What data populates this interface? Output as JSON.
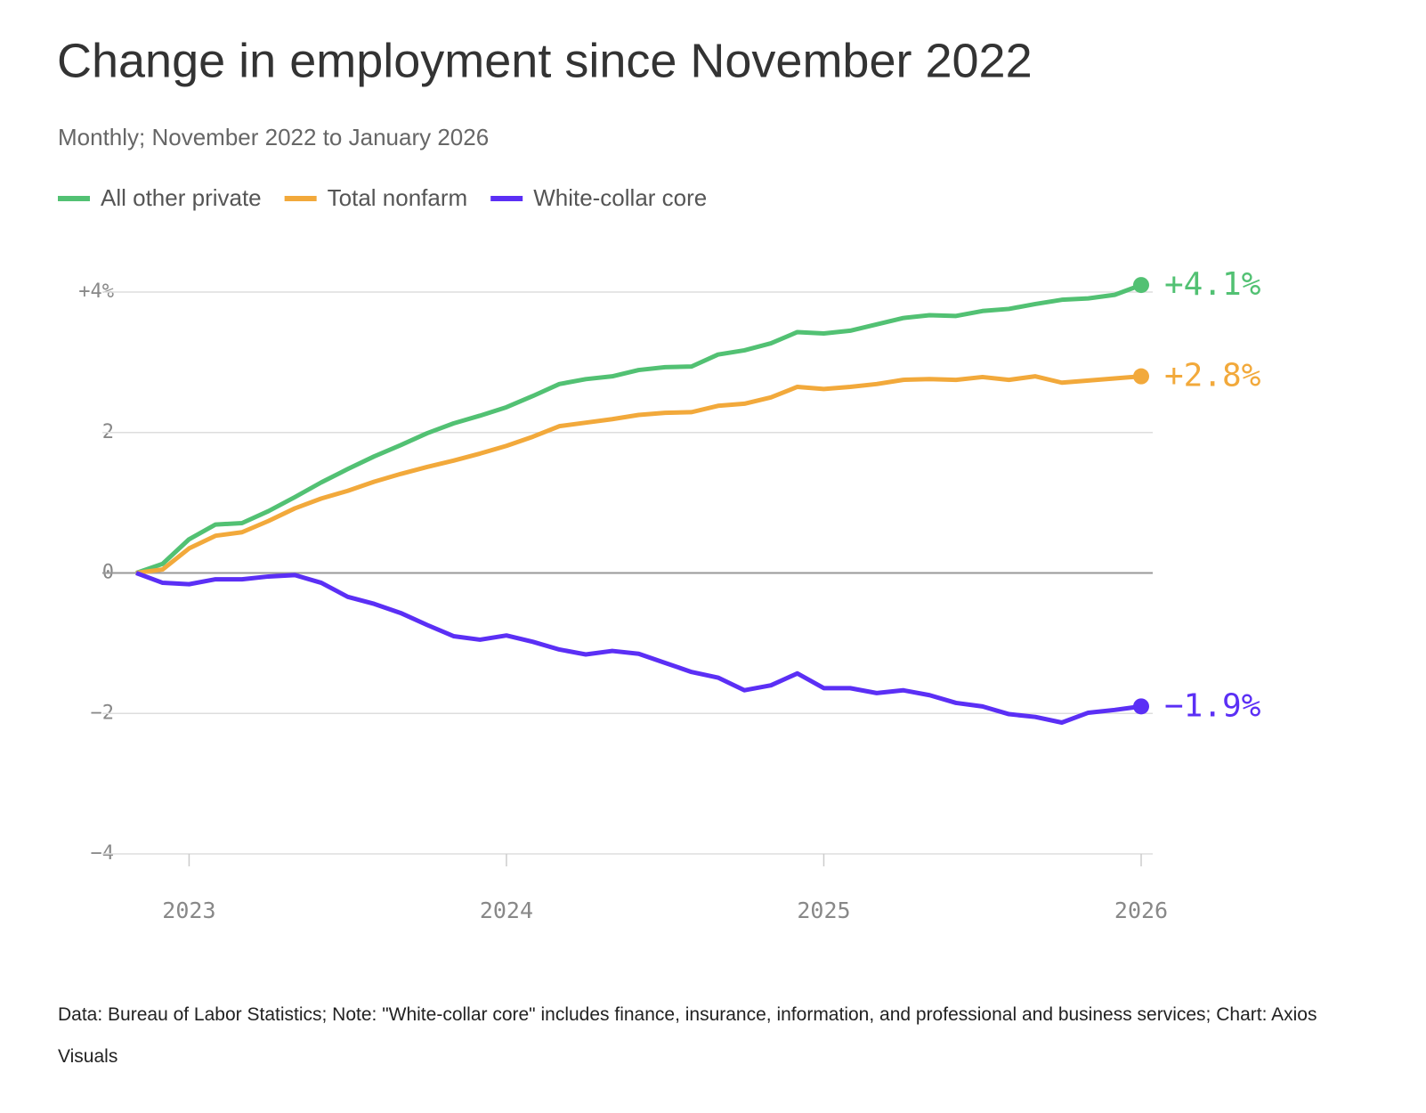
{
  "chart_data": {
    "type": "line",
    "title": "Change in employment since November 2022",
    "subtitle": "Monthly; November 2022 to January 2026",
    "note": "Data: Bureau of Labor Statistics; Note: \"White-collar core\" includes finance, insurance, information, and professional and business services; Chart: Axios Visuals",
    "x": [
      "2022-11",
      "2022-12",
      "2023-01",
      "2023-02",
      "2023-03",
      "2023-04",
      "2023-05",
      "2023-06",
      "2023-07",
      "2023-08",
      "2023-09",
      "2023-10",
      "2023-11",
      "2023-12",
      "2024-01",
      "2024-02",
      "2024-03",
      "2024-04",
      "2024-05",
      "2024-06",
      "2024-07",
      "2024-08",
      "2024-09",
      "2024-10",
      "2024-11",
      "2024-12",
      "2025-01",
      "2025-02",
      "2025-03",
      "2025-04",
      "2025-05",
      "2025-06",
      "2025-07",
      "2025-08",
      "2025-09",
      "2025-10",
      "2025-11",
      "2025-12",
      "2026-01"
    ],
    "xlim": [
      "2022-11",
      "2026-01"
    ],
    "xticks": [
      {
        "value": "2023-01",
        "label": "2023"
      },
      {
        "value": "2024-01",
        "label": "2024"
      },
      {
        "value": "2025-01",
        "label": "2025"
      },
      {
        "value": "2026-01",
        "label": "2026"
      }
    ],
    "ylim": [
      -4,
      4
    ],
    "yticks": [
      {
        "value": 4,
        "label": "+4%"
      },
      2,
      0,
      {
        "value": -2,
        "label": "−2"
      },
      {
        "value": -4,
        "label": "−4"
      }
    ],
    "grid": true,
    "series": [
      {
        "name": "All other private",
        "color": "#52c173",
        "values": [
          0,
          0.13,
          0.48,
          0.69,
          0.71,
          0.88,
          1.08,
          1.29,
          1.48,
          1.66,
          1.82,
          1.99,
          2.13,
          2.24,
          2.36,
          2.52,
          2.69,
          2.76,
          2.8,
          2.89,
          2.93,
          2.94,
          3.11,
          3.17,
          3.27,
          3.43,
          3.41,
          3.45,
          3.54,
          3.63,
          3.67,
          3.66,
          3.73,
          3.76,
          3.83,
          3.89,
          3.91,
          3.96,
          4.1
        ],
        "value_labels": [
          null,
          null,
          null,
          null,
          null,
          null,
          null,
          null,
          null,
          null,
          null,
          null,
          null,
          null,
          null,
          null,
          null,
          null,
          null,
          null,
          null,
          null,
          null,
          null,
          null,
          null,
          null,
          null,
          null,
          null,
          null,
          null,
          null,
          null,
          null,
          null,
          null,
          null,
          "+4.1%"
        ]
      },
      {
        "name": "Total nonfarm",
        "color": "#f2a93b",
        "values": [
          0,
          0.05,
          0.35,
          0.53,
          0.58,
          0.74,
          0.92,
          1.06,
          1.17,
          1.3,
          1.41,
          1.51,
          1.6,
          1.7,
          1.81,
          1.94,
          2.09,
          2.14,
          2.19,
          2.25,
          2.28,
          2.29,
          2.38,
          2.41,
          2.5,
          2.65,
          2.62,
          2.65,
          2.69,
          2.75,
          2.76,
          2.75,
          2.79,
          2.75,
          2.8,
          2.71,
          2.74,
          2.77,
          2.8
        ],
        "value_labels": [
          null,
          null,
          null,
          null,
          null,
          null,
          null,
          null,
          null,
          null,
          null,
          null,
          null,
          null,
          null,
          null,
          null,
          null,
          null,
          null,
          null,
          null,
          null,
          null,
          null,
          null,
          null,
          null,
          null,
          null,
          null,
          null,
          null,
          null,
          null,
          null,
          null,
          null,
          "+2.8%"
        ]
      },
      {
        "name": "White-collar core",
        "color": "#5b2ff5",
        "values": [
          0,
          -0.14,
          -0.16,
          -0.09,
          -0.09,
          -0.05,
          -0.03,
          -0.14,
          -0.34,
          -0.44,
          -0.57,
          -0.74,
          -0.9,
          -0.95,
          -0.89,
          -0.98,
          -1.09,
          -1.16,
          -1.11,
          -1.15,
          -1.28,
          -1.41,
          -1.49,
          -1.67,
          -1.6,
          -1.43,
          -1.64,
          -1.64,
          -1.71,
          -1.67,
          -1.74,
          -1.85,
          -1.9,
          -2.01,
          -2.05,
          -2.13,
          -1.99,
          -1.95,
          -1.9
        ],
        "value_labels": [
          null,
          null,
          null,
          null,
          null,
          null,
          null,
          null,
          null,
          null,
          null,
          null,
          null,
          null,
          null,
          null,
          null,
          null,
          null,
          null,
          null,
          null,
          null,
          null,
          null,
          null,
          null,
          null,
          null,
          null,
          null,
          null,
          null,
          null,
          null,
          null,
          null,
          null,
          "−1.9%"
        ]
      }
    ]
  }
}
